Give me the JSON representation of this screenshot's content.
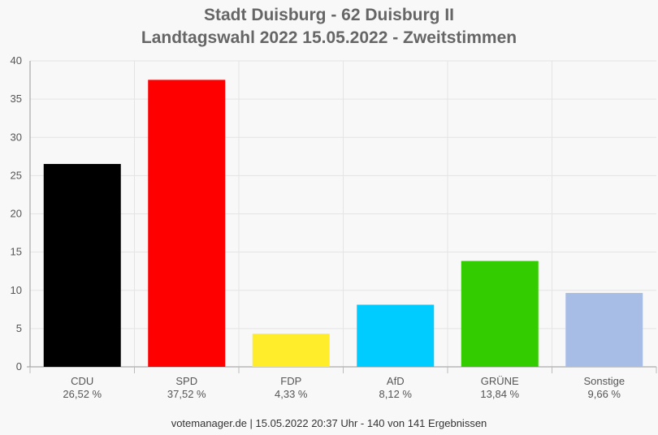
{
  "chart_data": {
    "type": "bar",
    "title": "Stadt Duisburg - 62 Duisburg II",
    "subtitle": "Landtagswahl 2022 15.05.2022  - Zweitstimmen",
    "categories": [
      "CDU",
      "SPD",
      "FDP",
      "AfD",
      "GRÜNE",
      "Sonstige"
    ],
    "values": [
      26.52,
      37.52,
      4.33,
      8.12,
      13.84,
      9.66
    ],
    "value_labels": [
      "26,52 %",
      "37,52 %",
      "4,33 %",
      "8,12 %",
      "13,84 %",
      "9,66 %"
    ],
    "colors": [
      "#000000",
      "#ff0000",
      "#ffed2b",
      "#00ccff",
      "#33cc00",
      "#a8bde6"
    ],
    "y_ticks": [
      "0",
      "5",
      "10",
      "15",
      "20",
      "25",
      "30",
      "35",
      "40"
    ],
    "ylim": [
      0,
      40
    ],
    "grid": true,
    "xlabel": "",
    "ylabel": ""
  },
  "footer": "votemanager.de | 15.05.2022 20:37 Uhr - 140 von 141 Ergebnissen"
}
